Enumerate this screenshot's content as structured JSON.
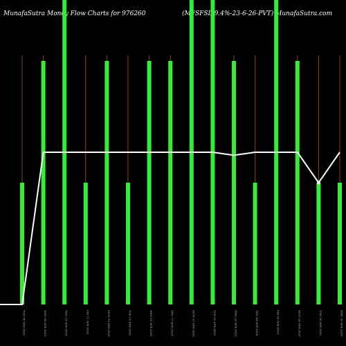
{
  "header": {
    "left_title": "MunafaSutra  Money Flow  Charts for 976260",
    "right_title": "(MFSFSL-9.4%-23-6-26-PVT) MunafaSutra.com"
  },
  "chart_data": {
    "type": "bar",
    "categories": [
      "TUE 08 APR 2025",
      "WED 09 APR 2025",
      "THU 10 APR 2025",
      "FRI 11 APR 2025",
      "MON 14 APR 2025",
      "TUE 15 APR 2025",
      "WED 16 APR 2025",
      "THU 17 APR 2025",
      "MON 21 APR 2025",
      "TUE 22 APR 2025",
      "WED 23 APR 2025",
      "THU 24 APR 2025",
      "FRI 25 APR 2025",
      "MON 28 APR 2025",
      "TUE 29 APR 2025",
      "WED 30 APR 2025"
    ],
    "series": [
      {
        "values": [
          40,
          80,
          100,
          40,
          80,
          40,
          80,
          80,
          100,
          100,
          80,
          40,
          100,
          80,
          40,
          40
        ]
      },
      {
        "values": [
          0,
          50,
          50,
          50,
          50,
          50,
          50,
          50,
          50,
          50,
          49,
          50,
          50,
          50,
          40,
          50
        ]
      }
    ],
    "ylim": [
      0,
      100
    ],
    "colors": {
      "bar": "#33ee33",
      "line": "#ffffff",
      "thin_line": "#8b4513",
      "background": "#000000"
    }
  }
}
